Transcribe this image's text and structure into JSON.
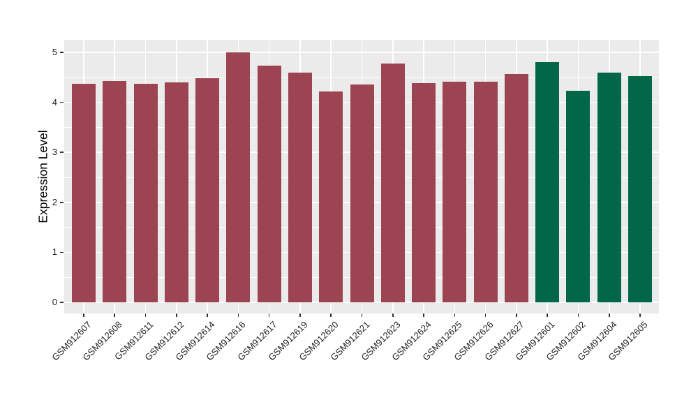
{
  "chart_data": {
    "type": "bar",
    "title": "",
    "xlabel": "",
    "ylabel": "Expression Level",
    "ylim": [
      0,
      5.25
    ],
    "yticks": [
      0,
      1,
      2,
      3,
      4,
      5
    ],
    "ytick_labels": [
      "0",
      "1",
      "2",
      "3",
      "4",
      "5"
    ],
    "grid": "on",
    "legend_position": "none",
    "panel_background": "#EBEBEB",
    "grid_color": "#FFFFFF",
    "axis_text_color": "#1F1F1F",
    "group_colors": {
      "group1": "#9C4451",
      "group2": "#016748"
    },
    "categories": [
      "GSM912607",
      "GSM912608",
      "GSM912611",
      "GSM912612",
      "GSM912614",
      "GSM912616",
      "GSM912617",
      "GSM912619",
      "GSM912620",
      "GSM912621",
      "GSM912623",
      "GSM912624",
      "GSM912625",
      "GSM912626",
      "GSM912627",
      "GSM912601",
      "GSM912602",
      "GSM912604",
      "GSM912605"
    ],
    "values": [
      4.37,
      4.43,
      4.37,
      4.4,
      4.48,
      5.0,
      4.74,
      4.59,
      4.22,
      4.36,
      4.78,
      4.38,
      4.41,
      4.42,
      4.57,
      4.8,
      4.23,
      4.6,
      4.53
    ],
    "bar_groups": [
      "group1",
      "group1",
      "group1",
      "group1",
      "group1",
      "group1",
      "group1",
      "group1",
      "group1",
      "group1",
      "group1",
      "group1",
      "group1",
      "group1",
      "group1",
      "group2",
      "group2",
      "group2",
      "group2"
    ]
  }
}
